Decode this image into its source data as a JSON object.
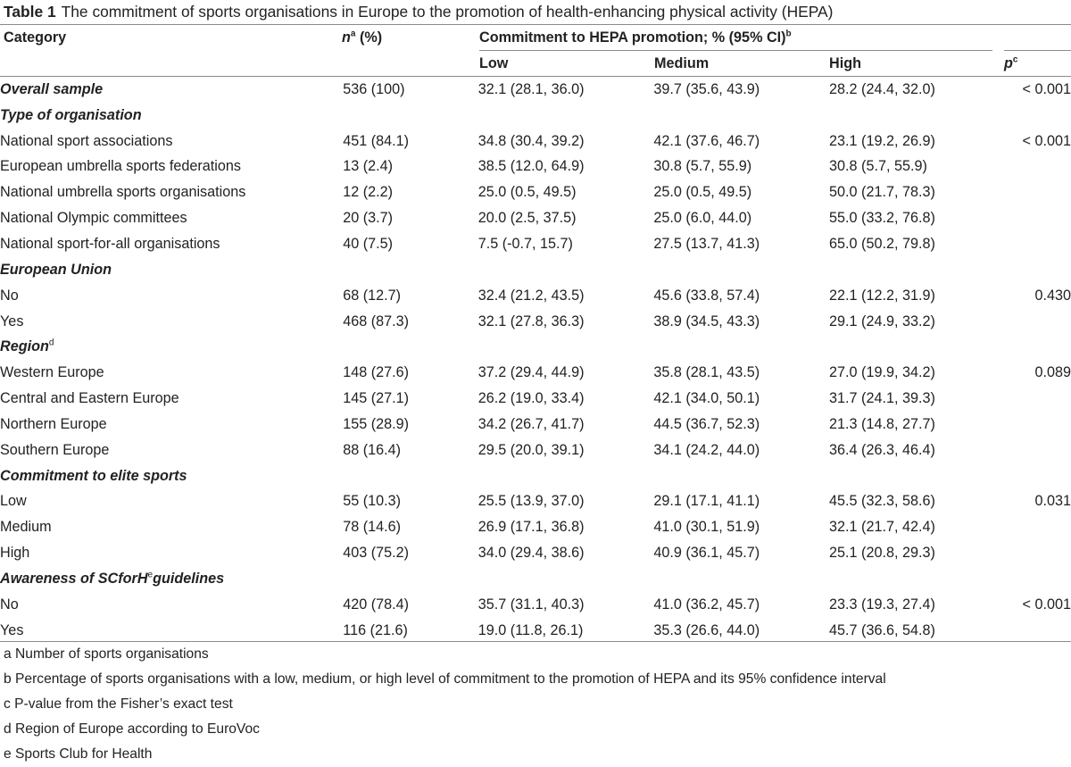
{
  "table": {
    "label": "Table 1",
    "caption": "The commitment of sports organisations in Europe to the promotion of health-enhancing physical activity (HEPA)",
    "header": {
      "category": "Category",
      "n": "n",
      "n_sup": "a",
      "n_suffix": " (%)",
      "commitment": "Commitment to HEPA promotion; % (95% CI)",
      "commitment_sup": "b",
      "low": "Low",
      "medium": "Medium",
      "high": "High",
      "p": "p",
      "p_sup": "c"
    },
    "rows": [
      {
        "type": "data-bold",
        "category": "Overall sample",
        "n": "536 (100)",
        "low": "32.1 (28.1, 36.0)",
        "medium": "39.7 (35.6, 43.9)",
        "high": "28.2 (24.4, 32.0)",
        "p": "< 0.001"
      },
      {
        "type": "section",
        "category": "Type of organisation"
      },
      {
        "type": "data",
        "category": "National sport associations",
        "n": "451 (84.1)",
        "low": "34.8 (30.4, 39.2)",
        "medium": "42.1 (37.6, 46.7)",
        "high": "23.1 (19.2, 26.9)",
        "p": "< 0.001"
      },
      {
        "type": "data",
        "category": "European umbrella sports federations",
        "n": "13 (2.4)",
        "low": "38.5 (12.0, 64.9)",
        "medium": "30.8 (5.7, 55.9)",
        "high": "30.8 (5.7, 55.9)",
        "p": ""
      },
      {
        "type": "data",
        "category": "National umbrella sports organisations",
        "n": "12 (2.2)",
        "low": "25.0 (0.5, 49.5)",
        "medium": "25.0 (0.5, 49.5)",
        "high": "50.0 (21.7, 78.3)",
        "p": ""
      },
      {
        "type": "data",
        "category": "National Olympic committees",
        "n": "20 (3.7)",
        "low": "20.0 (2.5, 37.5)",
        "medium": "25.0 (6.0, 44.0)",
        "high": "55.0 (33.2, 76.8)",
        "p": ""
      },
      {
        "type": "data",
        "category": "National sport-for-all organisations",
        "n": "40 (7.5)",
        "low": "7.5 (-0.7, 15.7)",
        "low_indent": true,
        "medium": "27.5 (13.7, 41.3)",
        "high": "65.0 (50.2, 79.8)",
        "p": ""
      },
      {
        "type": "section",
        "category": "European Union"
      },
      {
        "type": "data",
        "category": "No",
        "n": "68 (12.7)",
        "low": "32.4 (21.2, 43.5)",
        "medium": "45.6 (33.8, 57.4)",
        "high": "22.1 (12.2, 31.9)",
        "p": "0.430"
      },
      {
        "type": "data",
        "category": "Yes",
        "n": "468 (87.3)",
        "low": "32.1 (27.8, 36.3)",
        "medium": "38.9 (34.5, 43.3)",
        "high": "29.1 (24.9, 33.2)",
        "p": ""
      },
      {
        "type": "section",
        "category": "Region",
        "sup": "d"
      },
      {
        "type": "data",
        "category": "Western Europe",
        "n": "148 (27.6)",
        "low": "37.2 (29.4, 44.9)",
        "medium": "35.8 (28.1, 43.5)",
        "high": "27.0 (19.9, 34.2)",
        "p": "0.089"
      },
      {
        "type": "data",
        "category": "Central and Eastern Europe",
        "n": "145 (27.1)",
        "low": "26.2 (19.0, 33.4)",
        "medium": "42.1 (34.0, 50.1)",
        "high": "31.7 (24.1, 39.3)",
        "p": ""
      },
      {
        "type": "data",
        "category": "Northern Europe",
        "n": "155 (28.9)",
        "low": "34.2 (26.7, 41.7)",
        "medium": "44.5 (36.7, 52.3)",
        "high": "21.3 (14.8, 27.7)",
        "p": ""
      },
      {
        "type": "data",
        "category": "Southern Europe",
        "n": "88 (16.4)",
        "low": "29.5 (20.0, 39.1)",
        "medium": "34.1 (24.2, 44.0)",
        "high": "36.4 (26.3, 46.4)",
        "p": ""
      },
      {
        "type": "section",
        "category": "Commitment to elite sports"
      },
      {
        "type": "data",
        "category": "Low",
        "n": "55 (10.3)",
        "low": "25.5 (13.9, 37.0)",
        "medium": "29.1 (17.1, 41.1)",
        "high": "45.5 (32.3, 58.6)",
        "p": "0.031"
      },
      {
        "type": "data",
        "category": "Medium",
        "n": "78 (14.6)",
        "low": "26.9 (17.1, 36.8)",
        "medium": "41.0 (30.1, 51.9)",
        "high": "32.1 (21.7, 42.4)",
        "p": ""
      },
      {
        "type": "data",
        "category": "High",
        "n": "403 (75.2)",
        "low": "34.0 (29.4, 38.6)",
        "medium": "40.9 (36.1, 45.7)",
        "high": "25.1 (20.8, 29.3)",
        "p": ""
      },
      {
        "type": "section",
        "category": "Awareness of SCforH",
        "sup": "e",
        "category_suffix": "guidelines"
      },
      {
        "type": "data",
        "category": "No",
        "n": "420 (78.4)",
        "low": "35.7 (31.1, 40.3)",
        "medium": "41.0 (36.2, 45.7)",
        "high": "23.3 (19.3, 27.4)",
        "p": "< 0.001"
      },
      {
        "type": "data",
        "category": "Yes",
        "n": "116 (21.6)",
        "low": "19.0 (11.8, 26.1)",
        "medium": "35.3 (26.6, 44.0)",
        "high": "45.7 (36.6, 54.8)",
        "p": ""
      }
    ],
    "footnotes": [
      "a Number of sports organisations",
      "b Percentage of sports organisations with a low, medium, or high level of commitment to the promotion of HEPA and its 95% confidence interval",
      "c P-value from the Fisher’s exact test",
      "d Region of Europe according to EuroVoc",
      "e Sports Club for Health"
    ]
  }
}
